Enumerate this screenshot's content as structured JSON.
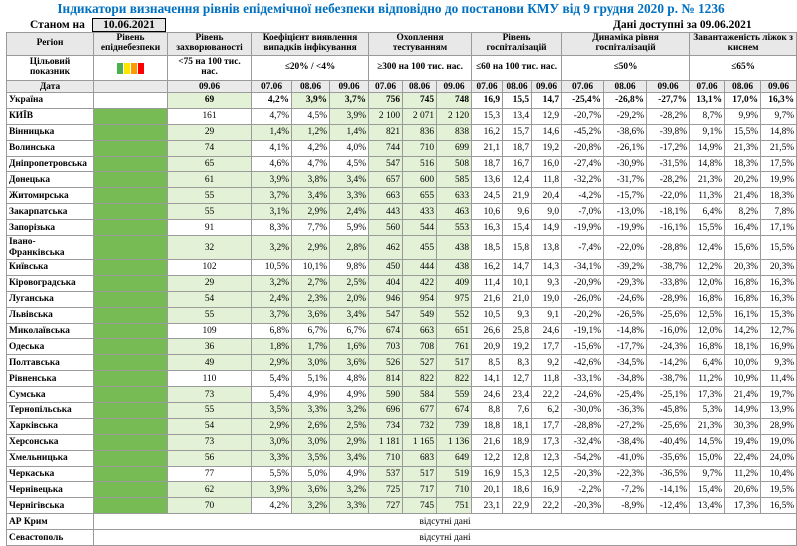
{
  "title": "Індикатори визначення рівнів епідемічної небезпеки відповідно до постанови КМУ від 9 грудня 2020 р. № 1236",
  "as_of_label": "Станом на",
  "as_of_date": "10.06.2021",
  "available_label": "Дані доступні за 09.06.2021",
  "headers": {
    "region": "Регіон",
    "level": "Рівень епіднебезпеки",
    "incidence": "Рівень захворюваності",
    "detection": "Коефіцієнт виявлення випадків інфікування",
    "testing": "Охоплення тестуванням",
    "hosp": "Рівень госпіталізацій",
    "dyn": "Динаміка рівня госпіталізацій",
    "beds": "Завантаженість ліжок з киснем"
  },
  "target": {
    "label": "Цільовий показник",
    "incidence": "<75 на 100 тис. нас.",
    "detection": "≤20% / <4%",
    "testing": "≥300 на 100 тис. нас.",
    "hosp": "≤60 на 100 тис. нас.",
    "dyn": "≤50%",
    "beds": "≤65%"
  },
  "level_colors": [
    "#4caf50",
    "#ffe600",
    "#ff9900",
    "#ff0000"
  ],
  "date_row": {
    "label": "Дата",
    "d1": "09.06",
    "d2": "07.06",
    "d3": "08.06",
    "d4": "09.06",
    "d5": "07.06",
    "d6": "08.06",
    "d7": "09.06",
    "d8": "07.06",
    "d9": "08.06",
    "d10": "09.06",
    "d11": "07.06",
    "d12": "08.06",
    "d13": "09.06",
    "d14": "07.06",
    "d15": "08.06",
    "d16": "09.06"
  },
  "rows": [
    {
      "name": "Україна",
      "inc": "69",
      "d": [
        "4,2%",
        "3,9%",
        "3,7%"
      ],
      "t": [
        "756",
        "745",
        "748"
      ],
      "h": [
        "16,9",
        "15,5",
        "14,7"
      ],
      "y": [
        "-25,4%",
        "-26,8%",
        "-27,7%"
      ],
      "b": [
        "13,1%",
        "17,0%",
        "16,3%"
      ],
      "inc_g": true,
      "d_g": [
        false,
        true,
        true
      ],
      "t_g": [
        true,
        true,
        true
      ],
      "ua": true
    },
    {
      "name": "КИЇВ",
      "inc": "161",
      "d": [
        "4,7%",
        "4,5%",
        "3,9%"
      ],
      "t": [
        "2 100",
        "2 071",
        "2 120"
      ],
      "h": [
        "15,3",
        "13,4",
        "12,9"
      ],
      "y": [
        "-20,7%",
        "-29,2%",
        "-28,2%"
      ],
      "b": [
        "8,7%",
        "9,9%",
        "9,7%"
      ],
      "inc_g": false,
      "d_g": [
        false,
        false,
        true
      ],
      "t_g": [
        true,
        true,
        true
      ]
    },
    {
      "name": "Вінницька",
      "inc": "29",
      "d": [
        "1,4%",
        "1,2%",
        "1,4%"
      ],
      "t": [
        "821",
        "836",
        "838"
      ],
      "h": [
        "16,2",
        "15,7",
        "14,6"
      ],
      "y": [
        "-45,2%",
        "-38,6%",
        "-39,8%"
      ],
      "b": [
        "9,1%",
        "15,5%",
        "14,8%"
      ],
      "inc_g": true,
      "d_g": [
        true,
        true,
        true
      ],
      "t_g": [
        true,
        true,
        true
      ]
    },
    {
      "name": "Волинська",
      "inc": "74",
      "d": [
        "4,1%",
        "4,2%",
        "4,0%"
      ],
      "t": [
        "744",
        "710",
        "699"
      ],
      "h": [
        "21,1",
        "18,7",
        "19,2"
      ],
      "y": [
        "-20,8%",
        "-26,1%",
        "-17,2%"
      ],
      "b": [
        "14,9%",
        "21,3%",
        "21,5%"
      ],
      "inc_g": true,
      "d_g": [
        false,
        false,
        false
      ],
      "t_g": [
        true,
        true,
        true
      ]
    },
    {
      "name": "Дніпропетровська",
      "inc": "65",
      "d": [
        "4,6%",
        "4,7%",
        "4,5%"
      ],
      "t": [
        "547",
        "516",
        "508"
      ],
      "h": [
        "18,7",
        "16,7",
        "16,0"
      ],
      "y": [
        "-27,4%",
        "-30,9%",
        "-31,5%"
      ],
      "b": [
        "14,8%",
        "18,3%",
        "17,5%"
      ],
      "inc_g": true,
      "d_g": [
        false,
        false,
        false
      ],
      "t_g": [
        true,
        true,
        true
      ]
    },
    {
      "name": "Донецька",
      "inc": "61",
      "d": [
        "3,9%",
        "3,8%",
        "3,4%"
      ],
      "t": [
        "657",
        "600",
        "585"
      ],
      "h": [
        "13,6",
        "12,4",
        "11,8"
      ],
      "y": [
        "-32,2%",
        "-31,7%",
        "-28,2%"
      ],
      "b": [
        "21,3%",
        "20,2%",
        "19,9%"
      ],
      "inc_g": true,
      "d_g": [
        true,
        true,
        true
      ],
      "t_g": [
        true,
        true,
        true
      ]
    },
    {
      "name": "Житомирська",
      "inc": "55",
      "d": [
        "3,7%",
        "3,4%",
        "3,3%"
      ],
      "t": [
        "663",
        "655",
        "633"
      ],
      "h": [
        "24,5",
        "21,9",
        "20,4"
      ],
      "y": [
        "-4,2%",
        "-15,7%",
        "-22,0%"
      ],
      "b": [
        "11,3%",
        "21,4%",
        "18,3%"
      ],
      "inc_g": true,
      "d_g": [
        true,
        true,
        true
      ],
      "t_g": [
        true,
        true,
        true
      ]
    },
    {
      "name": "Закарпатська",
      "inc": "55",
      "d": [
        "3,1%",
        "2,9%",
        "2,4%"
      ],
      "t": [
        "443",
        "433",
        "463"
      ],
      "h": [
        "10,6",
        "9,6",
        "9,0"
      ],
      "y": [
        "-7,0%",
        "-13,0%",
        "-18,1%"
      ],
      "b": [
        "6,4%",
        "8,2%",
        "7,8%"
      ],
      "inc_g": true,
      "d_g": [
        true,
        true,
        true
      ],
      "t_g": [
        true,
        true,
        true
      ]
    },
    {
      "name": "Запорізька",
      "inc": "91",
      "d": [
        "8,3%",
        "7,7%",
        "5,9%"
      ],
      "t": [
        "560",
        "544",
        "553"
      ],
      "h": [
        "16,3",
        "15,4",
        "14,9"
      ],
      "y": [
        "-19,9%",
        "-19,9%",
        "-16,1%"
      ],
      "b": [
        "15,5%",
        "16,4%",
        "17,1%"
      ],
      "inc_g": false,
      "d_g": [
        false,
        false,
        false
      ],
      "t_g": [
        true,
        true,
        true
      ]
    },
    {
      "name": "Івано-Франківська",
      "inc": "32",
      "d": [
        "3,2%",
        "2,9%",
        "2,8%"
      ],
      "t": [
        "462",
        "455",
        "438"
      ],
      "h": [
        "18,5",
        "15,8",
        "13,8"
      ],
      "y": [
        "-7,4%",
        "-22,0%",
        "-28,8%"
      ],
      "b": [
        "12,4%",
        "15,6%",
        "15,5%"
      ],
      "inc_g": true,
      "d_g": [
        true,
        true,
        true
      ],
      "t_g": [
        true,
        true,
        true
      ],
      "tall": true
    },
    {
      "name": "Київська",
      "inc": "102",
      "d": [
        "10,5%",
        "10,1%",
        "9,8%"
      ],
      "t": [
        "450",
        "444",
        "438"
      ],
      "h": [
        "16,2",
        "14,7",
        "14,3"
      ],
      "y": [
        "-34,1%",
        "-39,2%",
        "-38,7%"
      ],
      "b": [
        "12,2%",
        "20,3%",
        "20,3%"
      ],
      "inc_g": false,
      "d_g": [
        false,
        false,
        false
      ],
      "t_g": [
        true,
        true,
        true
      ]
    },
    {
      "name": "Кіровоградська",
      "inc": "29",
      "d": [
        "3,2%",
        "2,7%",
        "2,5%"
      ],
      "t": [
        "404",
        "422",
        "409"
      ],
      "h": [
        "11,4",
        "10,1",
        "9,3"
      ],
      "y": [
        "-20,9%",
        "-29,3%",
        "-33,8%"
      ],
      "b": [
        "12,0%",
        "16,8%",
        "16,3%"
      ],
      "inc_g": true,
      "d_g": [
        true,
        true,
        true
      ],
      "t_g": [
        true,
        true,
        true
      ]
    },
    {
      "name": "Луганська",
      "inc": "54",
      "d": [
        "2,4%",
        "2,3%",
        "2,0%"
      ],
      "t": [
        "946",
        "954",
        "975"
      ],
      "h": [
        "21,6",
        "21,0",
        "19,0"
      ],
      "y": [
        "-26,0%",
        "-24,6%",
        "-28,9%"
      ],
      "b": [
        "16,8%",
        "16,8%",
        "16,3%"
      ],
      "inc_g": true,
      "d_g": [
        true,
        true,
        true
      ],
      "t_g": [
        true,
        true,
        true
      ]
    },
    {
      "name": "Львівська",
      "inc": "55",
      "d": [
        "3,7%",
        "3,6%",
        "3,4%"
      ],
      "t": [
        "547",
        "549",
        "552"
      ],
      "h": [
        "10,5",
        "9,3",
        "9,1"
      ],
      "y": [
        "-20,2%",
        "-26,5%",
        "-25,6%"
      ],
      "b": [
        "12,5%",
        "16,1%",
        "15,3%"
      ],
      "inc_g": true,
      "d_g": [
        true,
        true,
        true
      ],
      "t_g": [
        true,
        true,
        true
      ]
    },
    {
      "name": "Миколаївська",
      "inc": "109",
      "d": [
        "6,8%",
        "6,7%",
        "6,7%"
      ],
      "t": [
        "674",
        "663",
        "651"
      ],
      "h": [
        "26,6",
        "25,8",
        "24,6"
      ],
      "y": [
        "-19,1%",
        "-14,8%",
        "-16,0%"
      ],
      "b": [
        "12,0%",
        "14,2%",
        "12,7%"
      ],
      "inc_g": false,
      "d_g": [
        false,
        false,
        false
      ],
      "t_g": [
        true,
        true,
        true
      ]
    },
    {
      "name": "Одеська",
      "inc": "36",
      "d": [
        "1,8%",
        "1,7%",
        "1,6%"
      ],
      "t": [
        "703",
        "708",
        "761"
      ],
      "h": [
        "20,9",
        "19,2",
        "17,7"
      ],
      "y": [
        "-15,6%",
        "-17,7%",
        "-24,3%"
      ],
      "b": [
        "16,8%",
        "18,1%",
        "16,9%"
      ],
      "inc_g": true,
      "d_g": [
        true,
        true,
        true
      ],
      "t_g": [
        true,
        true,
        true
      ]
    },
    {
      "name": "Полтавська",
      "inc": "49",
      "d": [
        "2,9%",
        "3,0%",
        "3,6%"
      ],
      "t": [
        "526",
        "527",
        "517"
      ],
      "h": [
        "8,5",
        "8,3",
        "9,2"
      ],
      "y": [
        "-42,6%",
        "-34,5%",
        "-14,2%"
      ],
      "b": [
        "6,4%",
        "10,0%",
        "9,3%"
      ],
      "inc_g": true,
      "d_g": [
        true,
        true,
        true
      ],
      "t_g": [
        true,
        true,
        true
      ]
    },
    {
      "name": "Рівненська",
      "inc": "110",
      "d": [
        "5,4%",
        "5,1%",
        "4,8%"
      ],
      "t": [
        "814",
        "822",
        "822"
      ],
      "h": [
        "14,1",
        "12,7",
        "11,8"
      ],
      "y": [
        "-33,1%",
        "-34,8%",
        "-38,7%"
      ],
      "b": [
        "11,2%",
        "10,9%",
        "11,4%"
      ],
      "inc_g": false,
      "d_g": [
        false,
        false,
        false
      ],
      "t_g": [
        true,
        true,
        true
      ]
    },
    {
      "name": "Сумська",
      "inc": "73",
      "d": [
        "5,4%",
        "4,9%",
        "4,9%"
      ],
      "t": [
        "590",
        "584",
        "559"
      ],
      "h": [
        "24,6",
        "23,4",
        "22,2"
      ],
      "y": [
        "-24,6%",
        "-25,4%",
        "-25,1%"
      ],
      "b": [
        "17,3%",
        "21,4%",
        "19,7%"
      ],
      "inc_g": true,
      "d_g": [
        false,
        false,
        false
      ],
      "t_g": [
        true,
        true,
        true
      ]
    },
    {
      "name": "Тернопільська",
      "inc": "55",
      "d": [
        "3,5%",
        "3,3%",
        "3,2%"
      ],
      "t": [
        "696",
        "677",
        "674"
      ],
      "h": [
        "8,8",
        "7,6",
        "6,2"
      ],
      "y": [
        "-30,0%",
        "-36,3%",
        "-45,8%"
      ],
      "b": [
        "5,3%",
        "14,9%",
        "13,9%"
      ],
      "inc_g": true,
      "d_g": [
        true,
        true,
        true
      ],
      "t_g": [
        true,
        true,
        true
      ]
    },
    {
      "name": "Харківська",
      "inc": "54",
      "d": [
        "2,9%",
        "2,6%",
        "2,5%"
      ],
      "t": [
        "734",
        "732",
        "739"
      ],
      "h": [
        "18,8",
        "18,1",
        "17,7"
      ],
      "y": [
        "-28,8%",
        "-27,2%",
        "-25,6%"
      ],
      "b": [
        "21,3%",
        "30,3%",
        "28,9%"
      ],
      "inc_g": true,
      "d_g": [
        true,
        true,
        true
      ],
      "t_g": [
        true,
        true,
        true
      ]
    },
    {
      "name": "Херсонська",
      "inc": "73",
      "d": [
        "3,0%",
        "3,0%",
        "2,9%"
      ],
      "t": [
        "1 181",
        "1 165",
        "1 136"
      ],
      "h": [
        "21,6",
        "18,9",
        "17,3"
      ],
      "y": [
        "-32,4%",
        "-38,4%",
        "-40,4%"
      ],
      "b": [
        "14,5%",
        "19,4%",
        "19,0%"
      ],
      "inc_g": true,
      "d_g": [
        true,
        true,
        true
      ],
      "t_g": [
        true,
        true,
        true
      ]
    },
    {
      "name": "Хмельницька",
      "inc": "56",
      "d": [
        "3,3%",
        "3,5%",
        "3,4%"
      ],
      "t": [
        "710",
        "683",
        "649"
      ],
      "h": [
        "12,2",
        "12,8",
        "12,3"
      ],
      "y": [
        "-54,2%",
        "-41,0%",
        "-35,6%"
      ],
      "b": [
        "15,0%",
        "22,4%",
        "24,0%"
      ],
      "inc_g": true,
      "d_g": [
        true,
        true,
        true
      ],
      "t_g": [
        true,
        true,
        true
      ]
    },
    {
      "name": "Черкаська",
      "inc": "77",
      "d": [
        "5,5%",
        "5,0%",
        "4,9%"
      ],
      "t": [
        "537",
        "517",
        "519"
      ],
      "h": [
        "16,9",
        "15,3",
        "12,5"
      ],
      "y": [
        "-20,3%",
        "-22,3%",
        "-36,5%"
      ],
      "b": [
        "9,7%",
        "11,2%",
        "10,4%"
      ],
      "inc_g": false,
      "d_g": [
        false,
        false,
        false
      ],
      "t_g": [
        true,
        true,
        true
      ]
    },
    {
      "name": "Чернівецька",
      "inc": "62",
      "d": [
        "3,9%",
        "3,6%",
        "3,2%"
      ],
      "t": [
        "725",
        "717",
        "710"
      ],
      "h": [
        "20,1",
        "18,6",
        "16,9"
      ],
      "y": [
        "-2,2%",
        "-7,2%",
        "-14,1%"
      ],
      "b": [
        "15,4%",
        "20,6%",
        "19,5%"
      ],
      "inc_g": true,
      "d_g": [
        true,
        true,
        true
      ],
      "t_g": [
        true,
        true,
        true
      ]
    },
    {
      "name": "Чернігівська",
      "inc": "70",
      "d": [
        "4,2%",
        "3,2%",
        "3,3%"
      ],
      "t": [
        "727",
        "745",
        "751"
      ],
      "h": [
        "23,1",
        "22,9",
        "22,2"
      ],
      "y": [
        "-20,3%",
        "-8,9%",
        "-12,4%"
      ],
      "b": [
        "13,4%",
        "17,3%",
        "16,5%"
      ],
      "inc_g": true,
      "d_g": [
        false,
        true,
        true
      ],
      "t_g": [
        true,
        true,
        true
      ]
    }
  ],
  "nodata": [
    {
      "name": "АР Крим",
      "text": "відсутні дані"
    },
    {
      "name": "Севастополь",
      "text": "відсутні дані"
    }
  ]
}
